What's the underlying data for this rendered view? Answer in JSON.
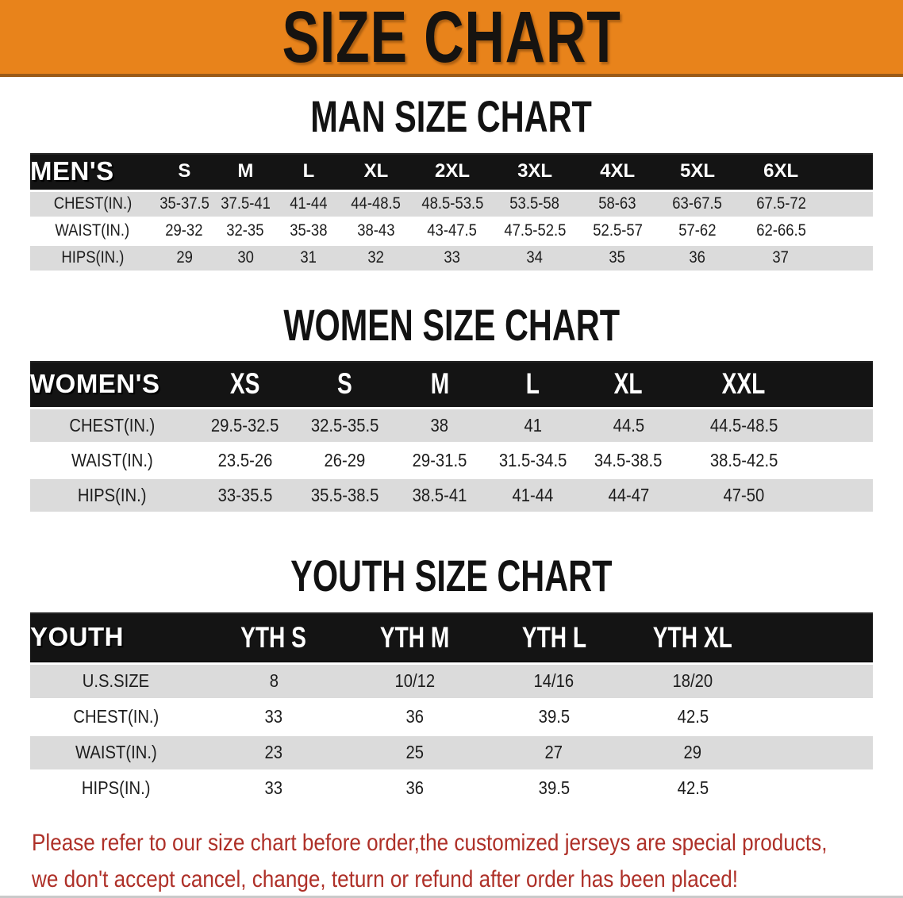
{
  "banner": {
    "title": "SIZE CHART",
    "bg_color": "#e8831b",
    "text_color": "#161310"
  },
  "colors": {
    "header_bar": "#141414",
    "row_shade": "#dbdbdb",
    "notice_red": "#ae3028"
  },
  "sections": [
    {
      "id": "men",
      "heading": "MAN SIZE CHART",
      "table": {
        "label": "MEN'S",
        "columns": [
          "S",
          "M",
          "L",
          "XL",
          "2XL",
          "3XL",
          "4XL",
          "5XL",
          "6XL"
        ],
        "rows": [
          {
            "label": "CHEST(IN.)",
            "values": [
              "35-37.5",
              "37.5-41",
              "41-44",
              "44-48.5",
              "48.5-53.5",
              "53.5-58",
              "58-63",
              "63-67.5",
              "67.5-72"
            ]
          },
          {
            "label": "WAIST(IN.)",
            "values": [
              "29-32",
              "32-35",
              "35-38",
              "38-43",
              "43-47.5",
              "47.5-52.5",
              "52.5-57",
              "57-62",
              "62-66.5"
            ]
          },
          {
            "label": "HIPS(IN.)",
            "values": [
              "29",
              "30",
              "31",
              "32",
              "33",
              "34",
              "35",
              "36",
              "37"
            ]
          }
        ]
      }
    },
    {
      "id": "women",
      "heading": "WOMEN SIZE CHART",
      "table": {
        "label": "WOMEN'S",
        "columns": [
          "XS",
          "S",
          "M",
          "L",
          "XL",
          "XXL"
        ],
        "rows": [
          {
            "label": "CHEST(IN.)",
            "values": [
              "29.5-32.5",
              "32.5-35.5",
              "38",
              "41",
              "44.5",
              "44.5-48.5"
            ]
          },
          {
            "label": "WAIST(IN.)",
            "values": [
              "23.5-26",
              "26-29",
              "29-31.5",
              "31.5-34.5",
              "34.5-38.5",
              "38.5-42.5"
            ]
          },
          {
            "label": "HIPS(IN.)",
            "values": [
              "33-35.5",
              "35.5-38.5",
              "38.5-41",
              "41-44",
              "44-47",
              "47-50"
            ]
          }
        ]
      }
    },
    {
      "id": "youth",
      "heading": "YOUTH SIZE CHART",
      "table": {
        "label": "YOUTH",
        "columns": [
          "YTH S",
          "YTH M",
          "YTH L",
          "YTH XL"
        ],
        "rows": [
          {
            "label": "U.S.SIZE",
            "values": [
              "8",
              "10/12",
              "14/16",
              "18/20"
            ]
          },
          {
            "label": "CHEST(IN.)",
            "values": [
              "33",
              "36",
              "39.5",
              "42.5"
            ]
          },
          {
            "label": "WAIST(IN.)",
            "values": [
              "23",
              "25",
              "27",
              "29"
            ]
          },
          {
            "label": "HIPS(IN.)",
            "values": [
              "33",
              "36",
              "39.5",
              "42.5"
            ]
          }
        ]
      }
    }
  ],
  "footer": {
    "line1": "Please refer to our size chart before order,the customized jerseys are special products,",
    "line2": "we don't accept cancel, change, teturn or refund after order has been placed!"
  }
}
